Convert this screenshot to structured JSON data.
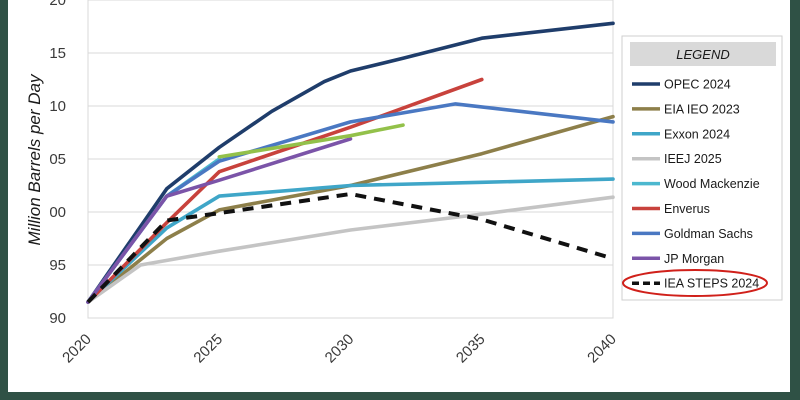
{
  "chart_data": {
    "type": "line",
    "xlim": [
      2020,
      2040
    ],
    "ylim": [
      90,
      120
    ],
    "y_tick_labels": [
      "90",
      "95",
      "00",
      "05",
      "10",
      "15",
      "20"
    ],
    "x_tick_labels": [
      "2020",
      "2025",
      "2030",
      "2035",
      "2040"
    ],
    "ylabel": "Million Barrels per Day",
    "xlabel": "",
    "grid": "horizontal",
    "legend": {
      "title": "LEGEND",
      "placement": "right",
      "highlighted": "IEA STEPS 2024"
    },
    "series": [
      {
        "name": "OPEC 2024",
        "color": "#1f3d6b",
        "style": "solid",
        "x": [
          2020,
          2023,
          2025,
          2027,
          2029,
          2030,
          2032,
          2035,
          2040
        ],
        "y": [
          91.5,
          102.2,
          106.1,
          109.5,
          112.3,
          113.3,
          114.5,
          116.4,
          117.8
        ]
      },
      {
        "name": "EIA IEO 2023",
        "color": "#8d7f4a",
        "style": "solid",
        "x": [
          2020,
          2023,
          2025,
          2030,
          2035,
          2040
        ],
        "y": [
          91.5,
          97.5,
          100.2,
          102.5,
          105.5,
          109.0
        ]
      },
      {
        "name": "Exxon 2024",
        "color": "#3fa6c8",
        "style": "solid",
        "x": [
          2020,
          2023,
          2025,
          2030,
          2035,
          2040
        ],
        "y": [
          91.5,
          98.5,
          101.5,
          102.5,
          102.8,
          103.1
        ]
      },
      {
        "name": "IEEJ 2025",
        "color": "#c4c4c4",
        "style": "solid",
        "x": [
          2020,
          2022,
          2025,
          2030,
          2035,
          2040
        ],
        "y": [
          91.5,
          95.0,
          96.3,
          98.3,
          99.8,
          101.4
        ]
      },
      {
        "name": "Wood Mackenzie",
        "color": "#4cb8cf",
        "style": "solid",
        "x": [
          2020,
          2023,
          2025
        ],
        "y": [
          91.5,
          101.5,
          105.0
        ]
      },
      {
        "name": "Enverus",
        "color": "#c8423c",
        "style": "solid",
        "x": [
          2020,
          2023,
          2025,
          2030,
          2035
        ],
        "y": [
          91.5,
          99.0,
          103.8,
          108.0,
          112.5
        ]
      },
      {
        "name": "Goldman Sachs",
        "color": "#4a78c2",
        "style": "solid",
        "x": [
          2020,
          2023,
          2025,
          2030,
          2034,
          2040
        ],
        "y": [
          91.5,
          101.5,
          104.8,
          108.5,
          110.2,
          108.5
        ]
      },
      {
        "name": "JP Morgan",
        "color": "#7b54a8",
        "style": "solid",
        "x": [
          2020,
          2023,
          2025,
          2030
        ],
        "y": [
          91.5,
          101.5,
          103.0,
          106.9
        ]
      },
      {
        "name": "",
        "color": "#93c14a",
        "style": "solid",
        "x": [
          2025,
          2030,
          2032
        ],
        "y": [
          105.2,
          107.2,
          108.2
        ]
      },
      {
        "name": "IEA STEPS 2024",
        "color": "#111111",
        "style": "dashed",
        "x": [
          2020,
          2023,
          2025,
          2030,
          2035,
          2040
        ],
        "y": [
          91.5,
          99.2,
          99.9,
          101.7,
          99.3,
          95.6
        ]
      }
    ]
  }
}
